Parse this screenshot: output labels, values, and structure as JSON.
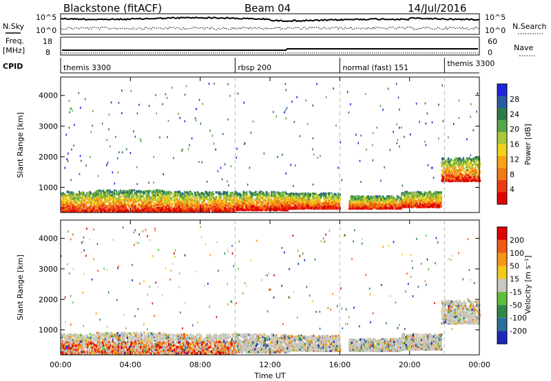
{
  "header": {
    "station": "Blackstone (fitACF)",
    "beam": "Beam 04",
    "date": "14/Jul/2016"
  },
  "nsky": {
    "label": "N.Sky",
    "ticks": [
      "10^5",
      "10^0"
    ],
    "right_label": "N.Search",
    "right_ticks": [
      "10^5",
      "10^0"
    ]
  },
  "freq": {
    "label": "Freq.",
    "unit": "[MHz]",
    "ticks": [
      "18",
      "8"
    ],
    "right_label": "Nave",
    "right_ticks": [
      "60",
      "0"
    ]
  },
  "cpid": {
    "label": "CPID",
    "segments": [
      {
        "name": "themis 3300",
        "start": 0,
        "end": 10
      },
      {
        "name": "rbsp 200",
        "start": 10,
        "end": 16
      },
      {
        "name": "normal (fast) 151",
        "start": 16,
        "end": 22
      },
      {
        "name": "themis 3300",
        "start": 22,
        "end": 24
      }
    ]
  },
  "power_panel": {
    "ylabel": "Slant Range [km]",
    "colorbar_label": "Power [dB]",
    "colorbar_ticks": [
      "28",
      "24",
      "20",
      "16",
      "12",
      "8",
      "4"
    ],
    "colors": [
      "#2323dc",
      "#2a5aa0",
      "#2f7a4a",
      "#57a64b",
      "#a8c93a",
      "#f2d21c",
      "#f5a316",
      "#ef7a16",
      "#ea3a12",
      "#e00000"
    ]
  },
  "velocity_panel": {
    "ylabel": "Slant Range [km]",
    "colorbar_label": "Velocity [m s⁻¹]",
    "colorbar_ticks": [
      "200",
      "100",
      "50",
      "15",
      "-15",
      "-50",
      "-100",
      "-200"
    ],
    "colors": [
      "#1d2ab8",
      "#2a6e9c",
      "#2f8a4a",
      "#5fbe3a",
      "#c8c8c0",
      "#f2c81c",
      "#f5961a",
      "#ef5a14",
      "#e00000"
    ]
  },
  "xaxis": {
    "label": "Time UT",
    "ticks": [
      "00:00",
      "04:00",
      "08:00",
      "12:00",
      "16:00",
      "20:00",
      "00:00"
    ]
  },
  "chart_data": {
    "type": "heatmap",
    "title": "Blackstone (fitACF) Beam 04 14/Jul/2016",
    "xlabel": "Time UT",
    "ylabel": "Slant Range [km]",
    "xlim": [
      0,
      24
    ],
    "ylim": [
      180,
      4600
    ],
    "yticks": [
      1000,
      2000,
      3000,
      4000
    ],
    "xticks": [
      "00:00",
      "04:00",
      "08:00",
      "12:00",
      "16:00",
      "20:00",
      "00:00"
    ],
    "scatter_bands": [
      {
        "start": 0.0,
        "end": 2.0,
        "low": 200,
        "high": 850
      },
      {
        "start": 2.0,
        "end": 6.0,
        "low": 200,
        "high": 900
      },
      {
        "start": 6.0,
        "end": 10.0,
        "low": 200,
        "high": 850
      },
      {
        "start": 10.0,
        "end": 13.0,
        "low": 250,
        "high": 850
      },
      {
        "start": 13.0,
        "end": 16.0,
        "low": 300,
        "high": 800
      },
      {
        "start": 16.5,
        "end": 19.5,
        "low": 300,
        "high": 700
      },
      {
        "start": 19.5,
        "end": 21.8,
        "low": 350,
        "high": 850
      },
      {
        "start": 21.8,
        "end": 24.0,
        "low": 1200,
        "high": 1950
      }
    ],
    "series": [
      {
        "name": "Power [dB]",
        "range": [
          0,
          30
        ]
      },
      {
        "name": "Velocity [m s⁻¹]",
        "range": [
          -200,
          200
        ]
      }
    ]
  }
}
